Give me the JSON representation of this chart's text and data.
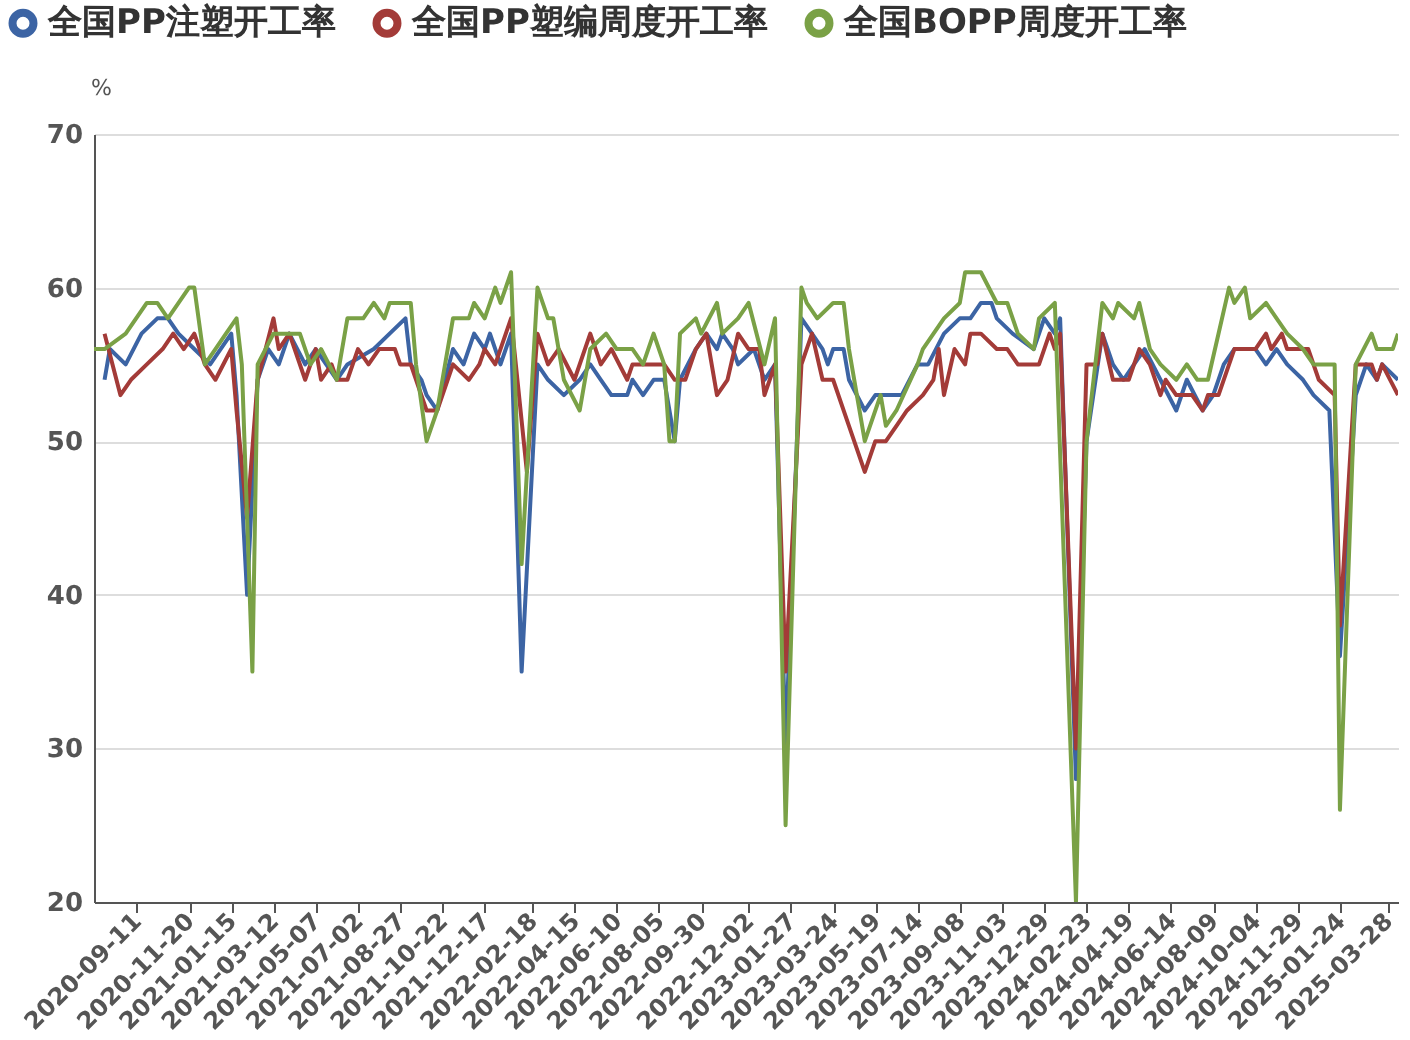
{
  "chart_data": {
    "type": "line",
    "ylabel": "%",
    "legend": "top",
    "grid": "y",
    "xlim": [
      "2020-07-17",
      "2025-04-11"
    ],
    "ylim": [
      20,
      70
    ],
    "yticks": [
      20,
      30,
      40,
      50,
      60,
      70
    ],
    "xticks": [
      "2020-09-11",
      "2020-11-20",
      "2021-01-15",
      "2021-03-12",
      "2021-05-07",
      "2021-07-02",
      "2021-08-27",
      "2021-10-22",
      "2021-12-17",
      "2022-02-18",
      "2022-04-15",
      "2022-06-10",
      "2022-08-05",
      "2022-09-30",
      "2022-12-02",
      "2023-01-27",
      "2023-03-24",
      "2023-05-19",
      "2023-07-14",
      "2023-09-08",
      "2023-11-03",
      "2023-12-29",
      "2024-02-23",
      "2024-04-19",
      "2024-06-14",
      "2024-08-09",
      "2024-10-04",
      "2024-11-29",
      "2025-01-24",
      "2025-03-28"
    ],
    "series": [
      {
        "name": "全国PP注塑开工率",
        "color": "#3c64a4",
        "x": [
          "2020-07-31",
          "2020-08-07",
          "2020-08-28",
          "2020-09-18",
          "2020-10-09",
          "2020-10-23",
          "2020-11-06",
          "2020-11-27",
          "2020-12-18",
          "2021-01-15",
          "2021-01-22",
          "2021-02-05",
          "2021-02-19",
          "2021-03-05",
          "2021-03-19",
          "2021-04-02",
          "2021-04-23",
          "2021-05-07",
          "2021-06-04",
          "2021-06-18",
          "2021-07-23",
          "2021-08-13",
          "2021-09-03",
          "2021-09-10",
          "2021-09-24",
          "2021-10-01",
          "2021-10-15",
          "2021-11-05",
          "2021-11-19",
          "2021-12-03",
          "2021-12-17",
          "2021-12-24",
          "2022-01-07",
          "2022-01-21",
          "2022-02-04",
          "2022-02-25",
          "2022-03-11",
          "2022-04-01",
          "2022-04-22",
          "2022-05-06",
          "2022-05-20",
          "2022-06-03",
          "2022-06-24",
          "2022-07-01",
          "2022-07-15",
          "2022-07-29",
          "2022-08-12",
          "2022-08-26",
          "2022-09-02",
          "2022-09-23",
          "2022-10-07",
          "2022-10-21",
          "2022-10-28",
          "2022-11-11",
          "2022-11-18",
          "2022-12-09",
          "2022-12-23",
          "2023-01-06",
          "2023-01-20",
          "2023-02-10",
          "2023-02-24",
          "2023-03-10",
          "2023-03-17",
          "2023-03-24",
          "2023-04-07",
          "2023-04-14",
          "2023-05-05",
          "2023-05-19",
          "2023-06-23",
          "2023-07-14",
          "2023-07-28",
          "2023-08-18",
          "2023-09-08",
          "2023-09-22",
          "2023-10-06",
          "2023-10-20",
          "2023-10-27",
          "2023-11-17",
          "2023-12-15",
          "2023-12-29",
          "2024-01-12",
          "2024-01-19",
          "2024-02-09",
          "2024-02-23",
          "2024-03-15",
          "2024-03-29",
          "2024-04-12",
          "2024-04-26",
          "2024-05-10",
          "2024-05-31",
          "2024-06-21",
          "2024-07-05",
          "2024-07-26",
          "2024-08-09",
          "2024-08-23",
          "2024-09-06",
          "2024-10-04",
          "2024-10-18",
          "2024-11-01",
          "2024-11-15",
          "2024-12-06",
          "2024-12-20",
          "2025-01-10",
          "2025-01-24",
          "2025-02-14",
          "2025-02-28",
          "2025-03-14",
          "2025-03-21",
          "2025-04-11"
        ],
        "values": [
          54,
          56,
          55,
          57,
          58,
          58,
          57,
          56,
          55,
          57,
          53,
          40,
          54,
          56,
          55,
          57,
          55,
          56,
          54,
          55,
          56,
          57,
          58,
          55,
          54,
          53,
          52,
          56,
          55,
          57,
          56,
          57,
          55,
          57,
          35,
          55,
          54,
          53,
          54,
          55,
          54,
          53,
          53,
          54,
          53,
          54,
          54,
          50,
          54,
          56,
          57,
          56,
          57,
          56,
          55,
          56,
          54,
          55,
          30,
          58,
          57,
          56,
          55,
          56,
          56,
          54,
          52,
          53,
          53,
          55,
          55,
          57,
          58,
          58,
          59,
          59,
          58,
          57,
          56,
          58,
          57,
          58,
          28,
          50,
          57,
          55,
          54,
          55,
          56,
          54,
          52,
          54,
          52,
          53,
          55,
          56,
          56,
          55,
          56,
          55,
          54,
          53,
          52,
          36,
          53,
          55,
          54,
          55,
          54
        ]
      },
      {
        "name": "全国PP塑编周度开工率",
        "color": "#a33b38",
        "x": [
          "2020-07-31",
          "2020-08-21",
          "2020-09-04",
          "2020-09-25",
          "2020-10-16",
          "2020-10-30",
          "2020-11-13",
          "2020-11-27",
          "2020-12-11",
          "2020-12-25",
          "2021-01-15",
          "2021-01-22",
          "2021-02-05",
          "2021-02-19",
          "2021-03-12",
          "2021-03-19",
          "2021-04-02",
          "2021-04-23",
          "2021-05-07",
          "2021-05-14",
          "2021-05-28",
          "2021-06-04",
          "2021-06-18",
          "2021-07-02",
          "2021-07-16",
          "2021-07-30",
          "2021-08-20",
          "2021-08-27",
          "2021-09-10",
          "2021-10-01",
          "2021-10-15",
          "2021-11-05",
          "2021-11-26",
          "2021-12-10",
          "2021-12-17",
          "2021-12-31",
          "2022-01-21",
          "2022-02-11",
          "2022-02-25",
          "2022-03-11",
          "2022-03-25",
          "2022-04-15",
          "2022-05-06",
          "2022-05-20",
          "2022-06-03",
          "2022-06-24",
          "2022-07-01",
          "2022-08-12",
          "2022-08-26",
          "2022-09-09",
          "2022-09-23",
          "2022-10-07",
          "2022-10-21",
          "2022-11-04",
          "2022-11-18",
          "2022-12-02",
          "2022-12-16",
          "2022-12-23",
          "2023-01-06",
          "2023-01-20",
          "2023-02-10",
          "2023-02-24",
          "2023-03-10",
          "2023-03-24",
          "2023-04-14",
          "2023-05-05",
          "2023-05-19",
          "2023-06-02",
          "2023-06-16",
          "2023-06-30",
          "2023-07-21",
          "2023-08-04",
          "2023-08-11",
          "2023-08-18",
          "2023-09-01",
          "2023-09-15",
          "2023-09-22",
          "2023-10-06",
          "2023-10-27",
          "2023-11-10",
          "2023-11-24",
          "2023-12-22",
          "2024-01-05",
          "2024-01-12",
          "2024-01-19",
          "2024-02-09",
          "2024-02-23",
          "2024-03-08",
          "2024-03-15",
          "2024-03-29",
          "2024-04-19",
          "2024-05-03",
          "2024-05-17",
          "2024-05-31",
          "2024-06-07",
          "2024-06-21",
          "2024-07-12",
          "2024-07-26",
          "2024-08-02",
          "2024-08-16",
          "2024-09-06",
          "2024-10-04",
          "2024-10-18",
          "2024-10-25",
          "2024-11-08",
          "2024-11-15",
          "2024-12-13",
          "2024-12-27",
          "2025-01-17",
          "2025-01-24",
          "2025-02-14",
          "2025-03-07",
          "2025-03-14",
          "2025-03-21",
          "2025-04-11"
        ],
        "values": [
          57,
          53,
          54,
          55,
          56,
          57,
          56,
          57,
          55,
          54,
          56,
          52,
          45,
          54,
          58,
          56,
          57,
          54,
          56,
          54,
          55,
          54,
          54,
          56,
          55,
          56,
          56,
          55,
          55,
          52,
          52,
          55,
          54,
          55,
          56,
          55,
          58,
          48,
          57,
          55,
          56,
          54,
          57,
          55,
          56,
          54,
          55,
          55,
          54,
          54,
          56,
          57,
          53,
          54,
          57,
          56,
          56,
          53,
          55,
          35,
          55,
          57,
          54,
          54,
          51,
          48,
          50,
          50,
          51,
          52,
          53,
          54,
          56,
          53,
          56,
          55,
          57,
          57,
          56,
          56,
          55,
          55,
          57,
          56,
          57,
          30,
          55,
          55,
          57,
          54,
          54,
          56,
          55,
          53,
          54,
          53,
          53,
          52,
          53,
          53,
          56,
          56,
          57,
          56,
          57,
          56,
          56,
          54,
          53,
          38,
          55,
          55,
          54,
          55,
          53
        ]
      },
      {
        "name": "全国BOPP周度开工率",
        "color": "#7aa146",
        "x": [
          "2020-07-17",
          "2020-07-31",
          "2020-08-28",
          "2020-09-25",
          "2020-10-09",
          "2020-10-23",
          "2020-11-20",
          "2020-11-27",
          "2020-12-11",
          "2020-12-25",
          "2021-01-08",
          "2021-01-22",
          "2021-01-29",
          "2021-02-12",
          "2021-02-19",
          "2021-03-12",
          "2021-04-16",
          "2021-04-30",
          "2021-05-14",
          "2021-06-04",
          "2021-06-18",
          "2021-07-09",
          "2021-07-23",
          "2021-08-06",
          "2021-08-13",
          "2021-09-10",
          "2021-09-17",
          "2021-10-01",
          "2021-10-15",
          "2021-11-05",
          "2021-11-26",
          "2021-12-03",
          "2021-12-17",
          "2021-12-31",
          "2022-01-07",
          "2022-01-21",
          "2022-02-04",
          "2022-02-25",
          "2022-03-11",
          "2022-03-18",
          "2022-04-01",
          "2022-04-22",
          "2022-05-06",
          "2022-05-27",
          "2022-06-10",
          "2022-07-01",
          "2022-07-15",
          "2022-07-29",
          "2022-08-12",
          "2022-08-19",
          "2022-08-26",
          "2022-09-02",
          "2022-09-23",
          "2022-09-30",
          "2022-10-21",
          "2022-10-28",
          "2022-11-18",
          "2022-12-02",
          "2022-12-23",
          "2023-01-06",
          "2023-01-20",
          "2023-02-10",
          "2023-02-17",
          "2023-03-03",
          "2023-03-24",
          "2023-04-07",
          "2023-04-14",
          "2023-05-05",
          "2023-05-26",
          "2023-06-02",
          "2023-06-16",
          "2023-07-14",
          "2023-07-21",
          "2023-08-18",
          "2023-09-08",
          "2023-09-15",
          "2023-10-06",
          "2023-10-27",
          "2023-11-10",
          "2023-11-24",
          "2023-12-15",
          "2023-12-22",
          "2024-01-12",
          "2024-02-09",
          "2024-02-23",
          "2024-03-15",
          "2024-03-29",
          "2024-04-05",
          "2024-04-26",
          "2024-05-03",
          "2024-05-17",
          "2024-05-31",
          "2024-06-21",
          "2024-07-05",
          "2024-07-19",
          "2024-08-02",
          "2024-08-16",
          "2024-08-30",
          "2024-09-06",
          "2024-09-20",
          "2024-09-27",
          "2024-10-18",
          "2024-11-01",
          "2024-11-15",
          "2024-12-06",
          "2024-12-20",
          "2025-01-17",
          "2025-01-24",
          "2025-02-14",
          "2025-03-07",
          "2025-03-14",
          "2025-04-04",
          "2025-04-11"
        ],
        "values": [
          56,
          56,
          57,
          59,
          59,
          58,
          60,
          60,
          55,
          56,
          57,
          58,
          55,
          35,
          55,
          57,
          57,
          55,
          56,
          54,
          58,
          58,
          59,
          58,
          59,
          59,
          55,
          50,
          52,
          58,
          58,
          59,
          58,
          60,
          59,
          61,
          42,
          60,
          58,
          58,
          54,
          52,
          56,
          57,
          56,
          56,
          55,
          57,
          55,
          50,
          50,
          57,
          58,
          57,
          59,
          57,
          58,
          59,
          55,
          58,
          25,
          60,
          59,
          58,
          59,
          59,
          56,
          50,
          53,
          51,
          52,
          55,
          56,
          58,
          59,
          61,
          61,
          59,
          59,
          57,
          56,
          58,
          59,
          20,
          50,
          59,
          58,
          59,
          58,
          59,
          56,
          55,
          54,
          55,
          54,
          54,
          57,
          60,
          59,
          60,
          58,
          59,
          58,
          57,
          56,
          55,
          55,
          26,
          55,
          57,
          56,
          56,
          57
        ]
      }
    ]
  }
}
